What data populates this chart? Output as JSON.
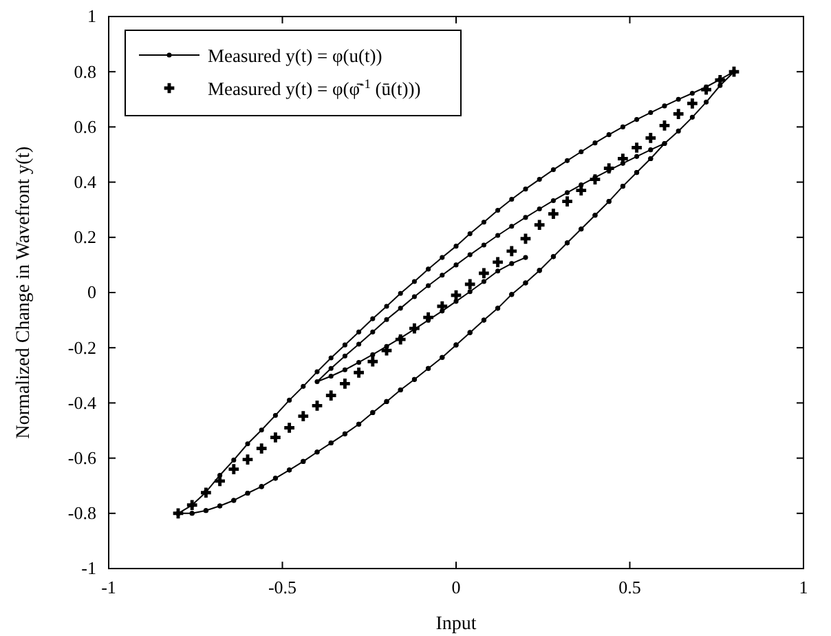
{
  "chart_data": {
    "type": "line",
    "xlabel": "Input",
    "ylabel": "Normalized Change in Wavefront y(t)",
    "xlim": [
      -1,
      1
    ],
    "xticks": [
      -1,
      -0.5,
      0,
      0.5,
      1
    ],
    "ylim": [
      -1,
      1
    ],
    "yticks": [
      -1,
      -0.8,
      -0.6,
      -0.4,
      -0.2,
      0,
      0.2,
      0.4,
      0.6,
      0.8,
      1
    ],
    "grid": false,
    "legend": "top left",
    "series": [
      {
        "name": "Measured y(t) = φ(u(t))",
        "color": "#000000",
        "marker": "circle",
        "line_style": "solid",
        "x": [
          -0.8,
          -0.76,
          -0.72,
          -0.68,
          -0.64,
          -0.6,
          -0.56,
          -0.52,
          -0.48,
          -0.44,
          -0.4,
          -0.36,
          -0.32,
          -0.28,
          -0.24,
          -0.2,
          -0.16,
          -0.12,
          -0.08,
          -0.04,
          0,
          0.04,
          0.08,
          0.12,
          0.16,
          0.2,
          0.24,
          0.28,
          0.32,
          0.36,
          0.4,
          0.44,
          0.48,
          0.52,
          0.56,
          0.6,
          0.64,
          0.68,
          0.72,
          0.76,
          0.8,
          0.76,
          0.72,
          0.68,
          0.64,
          0.6,
          0.56,
          0.52,
          0.48,
          0.44,
          0.4,
          0.36,
          0.32,
          0.28,
          0.24,
          0.2,
          0.16,
          0.12,
          0.08,
          0.04,
          0,
          -0.04,
          -0.08,
          -0.12,
          -0.16,
          -0.2,
          -0.24,
          -0.28,
          -0.32,
          -0.36,
          -0.4,
          -0.44,
          -0.48,
          -0.52,
          -0.56,
          -0.6,
          -0.64,
          -0.68,
          -0.72,
          -0.76,
          -0.8,
          -0.76,
          -0.72,
          -0.68,
          -0.64,
          -0.6,
          -0.56,
          -0.52,
          -0.48,
          -0.44,
          -0.4,
          -0.36,
          -0.32,
          -0.28,
          -0.24,
          -0.2,
          -0.16,
          -0.12,
          -0.08,
          -0.04,
          0,
          0.04,
          0.08,
          0.12,
          0.16,
          0.2,
          0.24,
          0.28,
          0.32,
          0.36,
          0.4,
          0.44,
          0.48,
          0.52,
          0.56,
          0.6,
          0.56,
          0.52,
          0.48,
          0.44,
          0.4,
          0.36,
          0.32,
          0.28,
          0.24,
          0.2,
          0.16,
          0.12,
          0.08,
          0.04,
          0,
          -0.04,
          -0.08,
          -0.12,
          -0.16,
          -0.2,
          -0.24,
          -0.28,
          -0.32,
          -0.36,
          -0.4,
          -0.36,
          -0.32,
          -0.28,
          -0.24,
          -0.2,
          -0.16,
          -0.12,
          -0.08,
          -0.04,
          0,
          0.04,
          0.08,
          0.12,
          0.16,
          0.2
        ],
        "values": [
          -0.8,
          -0.8,
          -0.79,
          -0.773,
          -0.753,
          -0.727,
          -0.703,
          -0.673,
          -0.643,
          -0.612,
          -0.578,
          -0.545,
          -0.512,
          -0.477,
          -0.435,
          -0.395,
          -0.353,
          -0.315,
          -0.275,
          -0.235,
          -0.19,
          -0.145,
          -0.1,
          -0.057,
          -0.007,
          0.035,
          0.08,
          0.13,
          0.18,
          0.23,
          0.28,
          0.33,
          0.385,
          0.435,
          0.485,
          0.54,
          0.585,
          0.635,
          0.69,
          0.75,
          0.8,
          0.772,
          0.745,
          0.722,
          0.7,
          0.676,
          0.652,
          0.627,
          0.6,
          0.572,
          0.542,
          0.51,
          0.478,
          0.445,
          0.41,
          0.375,
          0.338,
          0.298,
          0.255,
          0.213,
          0.168,
          0.127,
          0.085,
          0.04,
          -0.003,
          -0.05,
          -0.095,
          -0.143,
          -0.19,
          -0.237,
          -0.287,
          -0.34,
          -0.39,
          -0.445,
          -0.498,
          -0.548,
          -0.607,
          -0.662,
          -0.723,
          -0.77,
          -0.8,
          -0.8,
          -0.79,
          -0.773,
          -0.753,
          -0.727,
          -0.703,
          -0.673,
          -0.643,
          -0.612,
          -0.578,
          -0.545,
          -0.512,
          -0.477,
          -0.435,
          -0.395,
          -0.353,
          -0.315,
          -0.275,
          -0.235,
          -0.19,
          -0.145,
          -0.1,
          -0.057,
          -0.007,
          0.035,
          0.08,
          0.13,
          0.18,
          0.23,
          0.28,
          0.33,
          0.385,
          0.435,
          0.485,
          0.54,
          0.517,
          0.493,
          0.468,
          0.443,
          0.417,
          0.39,
          0.362,
          0.333,
          0.303,
          0.272,
          0.24,
          0.207,
          0.172,
          0.137,
          0.1,
          0.063,
          0.025,
          -0.015,
          -0.057,
          -0.098,
          -0.143,
          -0.187,
          -0.23,
          -0.275,
          -0.323,
          -0.303,
          -0.28,
          -0.253,
          -0.225,
          -0.195,
          -0.165,
          -0.133,
          -0.1,
          -0.067,
          -0.032,
          0.003,
          0.04,
          0.078,
          0.105,
          0.127
        ]
      },
      {
        "name": "Measured y(t) = φ(φ̄$^{-1}$ (ū(t)))",
        "type": "scatter",
        "color": "#000000",
        "marker": "cross",
        "x": [
          -0.8,
          -0.76,
          -0.72,
          -0.68,
          -0.64,
          -0.6,
          -0.56,
          -0.52,
          -0.48,
          -0.44,
          -0.4,
          -0.36,
          -0.32,
          -0.28,
          -0.24,
          -0.2,
          -0.16,
          -0.12,
          -0.08,
          -0.04,
          0,
          0.04,
          0.08,
          0.12,
          0.16,
          0.2,
          0.24,
          0.28,
          0.32,
          0.36,
          0.4,
          0.44,
          0.48,
          0.52,
          0.56,
          0.6,
          0.64,
          0.68,
          0.72,
          0.76,
          0.8
        ],
        "values": [
          -0.8,
          -0.77,
          -0.725,
          -0.683,
          -0.64,
          -0.605,
          -0.565,
          -0.525,
          -0.49,
          -0.448,
          -0.41,
          -0.373,
          -0.33,
          -0.29,
          -0.25,
          -0.21,
          -0.17,
          -0.13,
          -0.09,
          -0.05,
          -0.01,
          0.03,
          0.07,
          0.11,
          0.15,
          0.195,
          0.245,
          0.285,
          0.33,
          0.37,
          0.41,
          0.45,
          0.485,
          0.525,
          0.56,
          0.605,
          0.647,
          0.685,
          0.735,
          0.77,
          0.8
        ]
      }
    ]
  }
}
